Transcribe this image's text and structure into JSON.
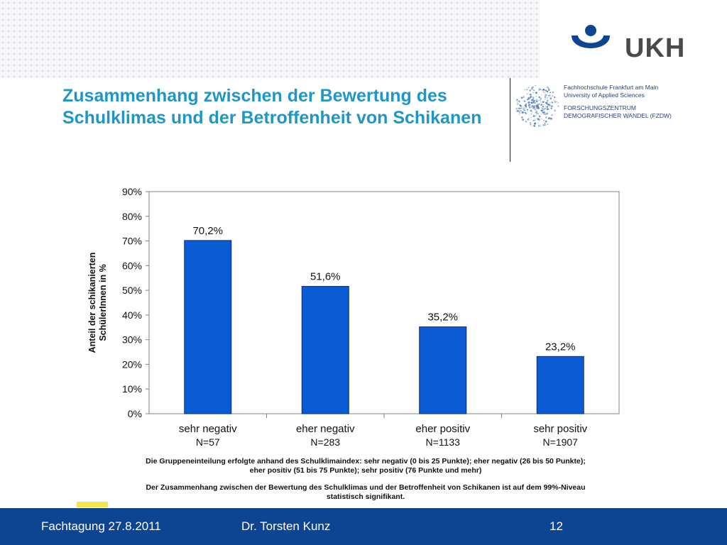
{
  "header": {
    "logo_text": "UKH",
    "title": "Zusammenhang zwischen der Bewertung des Schulklimas und der Betroffenheit von Schikanen",
    "institution": {
      "line1": "Fachhochschule Frankfurt am Main",
      "line2": "University of Applied Sciences",
      "line3": "FORSCHUNGSZENTRUM",
      "line4": "DEMOGRAFISCHER WANDEL (FZDW)"
    }
  },
  "colors": {
    "accent": "#1e96c8",
    "bar": "#0a5bd4",
    "footer": "#0e4592"
  },
  "chart_data": {
    "type": "bar",
    "title": "",
    "ylabel": "Anteil der schikanierten SchülerInnen in %",
    "xlabel": "",
    "categories": [
      "sehr negativ",
      "eher negativ",
      "eher positiv",
      "sehr positiv"
    ],
    "category_n": [
      "N=57",
      "N=283",
      "N=1133",
      "N=1907"
    ],
    "values": [
      70.2,
      51.6,
      35.2,
      23.2
    ],
    "value_labels": [
      "70,2%",
      "51,6%",
      "35,2%",
      "23,2%"
    ],
    "ylim": [
      0,
      90
    ],
    "yticks": [
      0,
      10,
      20,
      30,
      40,
      50,
      60,
      70,
      80,
      90
    ],
    "ytick_labels": [
      "0%",
      "10%",
      "20%",
      "30%",
      "40%",
      "50%",
      "60%",
      "70%",
      "80%",
      "90%"
    ],
    "grid": false,
    "legend": "none"
  },
  "captions": {
    "grouping_line1": "Die Gruppeneinteilung erfolgte anhand des Schulklimaindex: sehr negativ (0 bis 25 Punkte); eher negativ (26 bis 50 Punkte);",
    "grouping_line2": "eher positiv (51 bis 75 Punkte); sehr positiv (76 Punkte und mehr)",
    "significance_line1": "Der Zusammenhang zwischen der Bewertung des Schulklimas und der Betroffenheit von Schikanen ist auf dem 99%-Niveau",
    "significance_line2": "statistisch signifikant."
  },
  "footer": {
    "date": "Fachtagung 27.8.2011",
    "author": "Dr. Torsten Kunz",
    "page": "12"
  }
}
